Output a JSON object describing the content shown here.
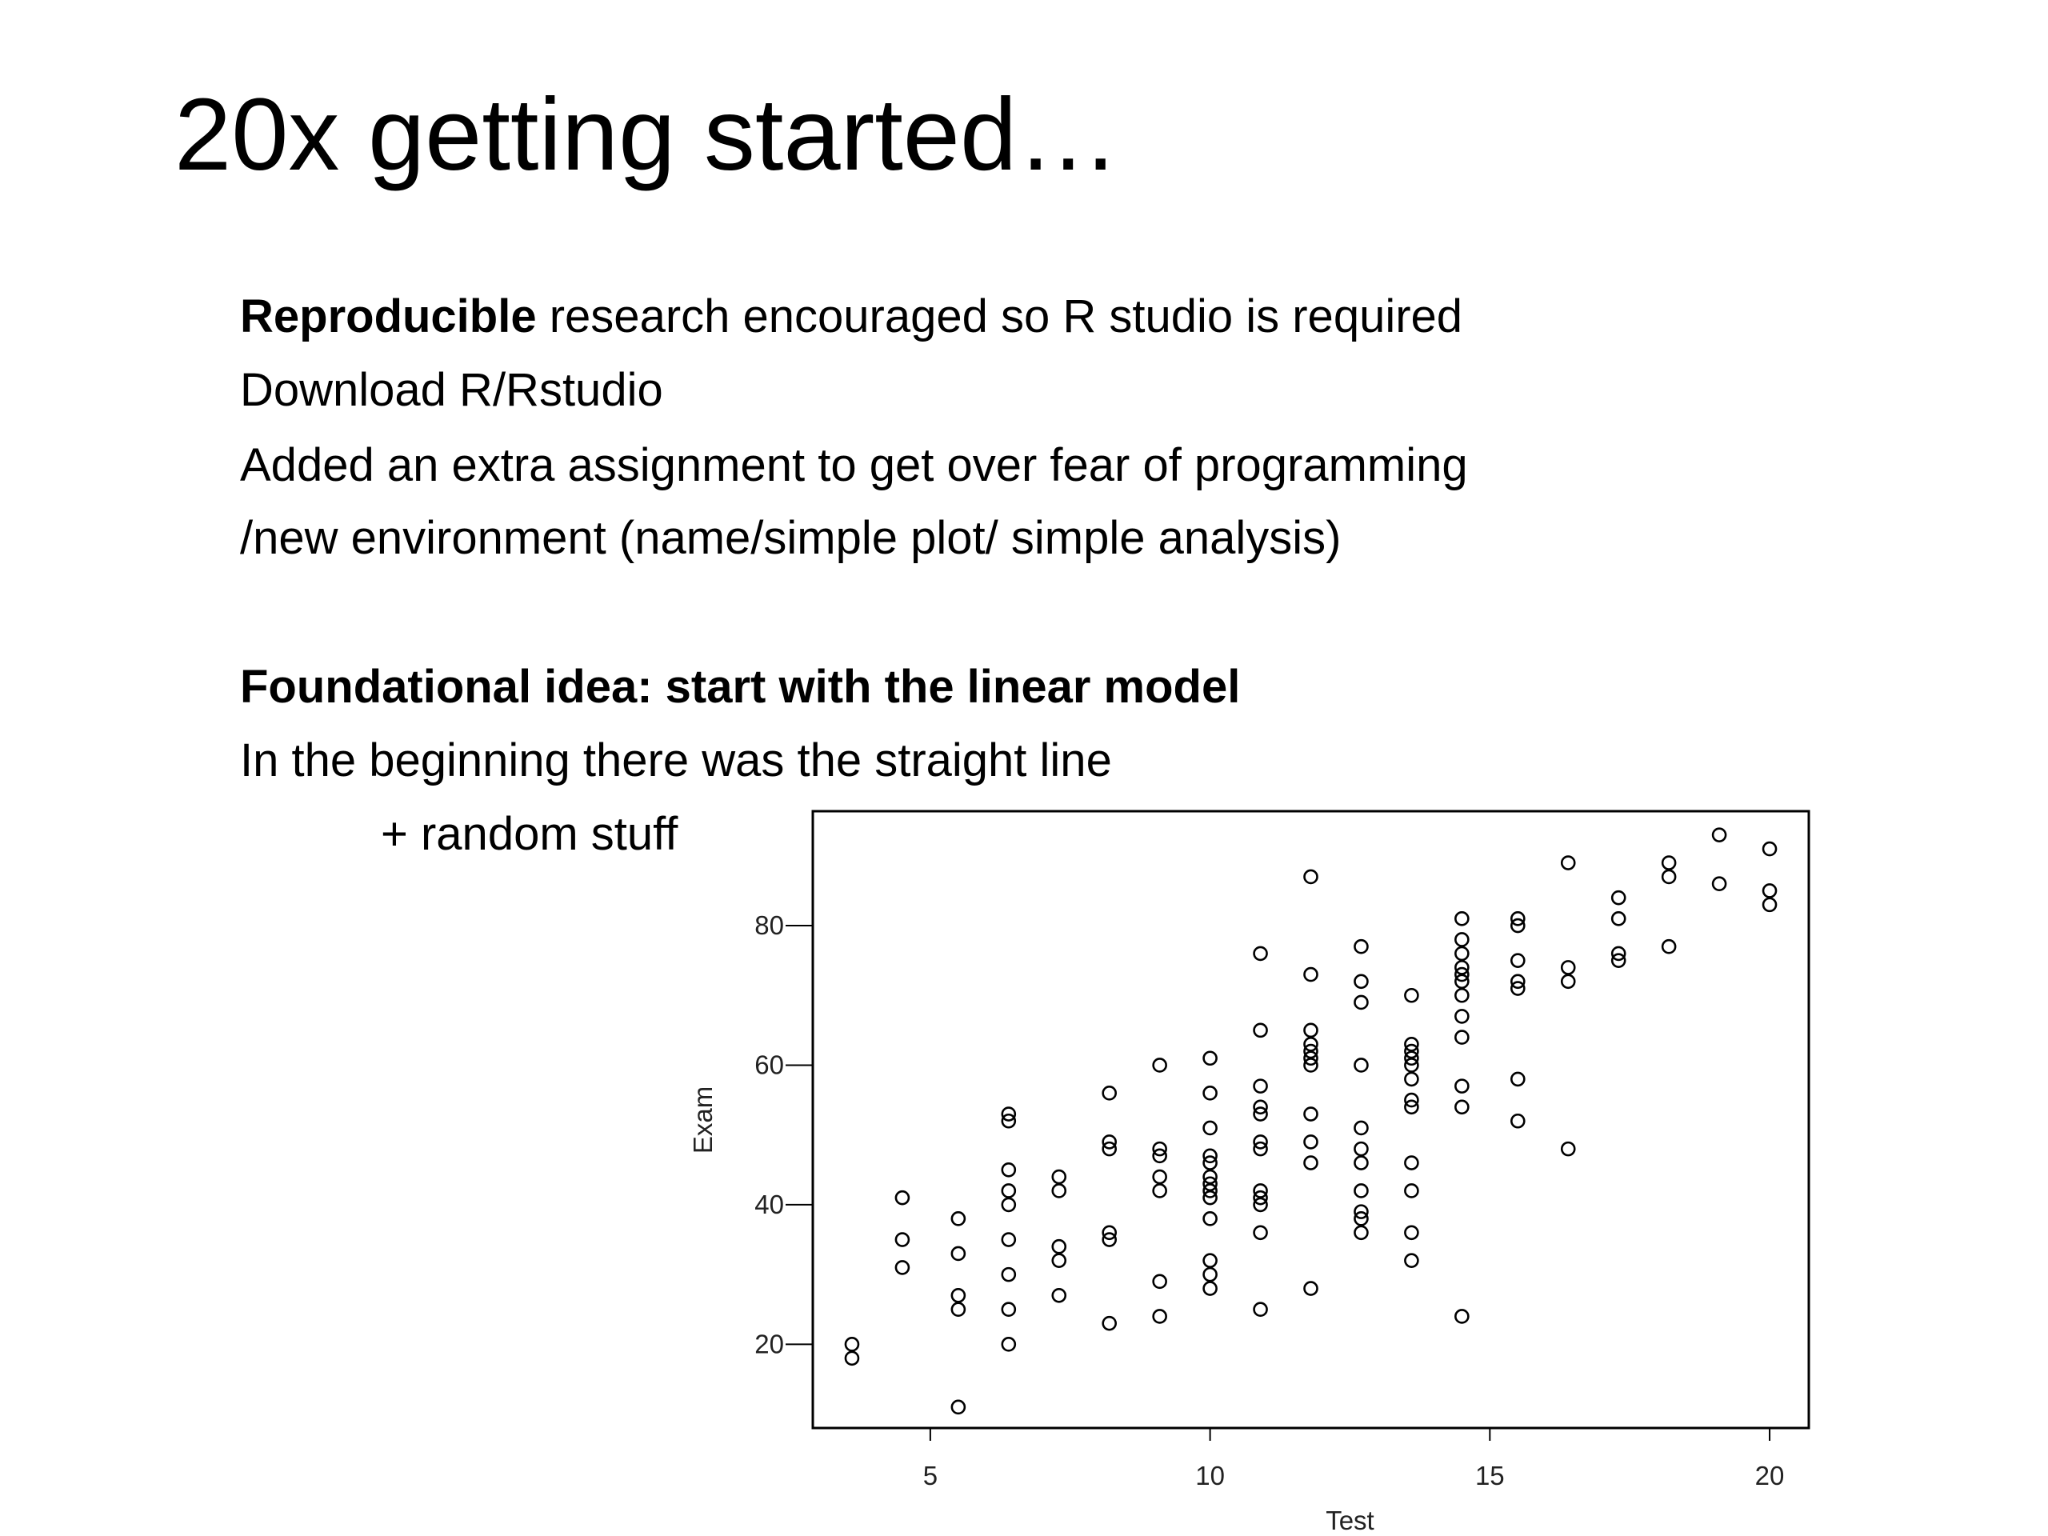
{
  "title": "20x getting started…",
  "lines": [
    {
      "bold": "Reproducible",
      "text": "research encouraged so R studio is required"
    },
    {
      "text": "Download R/Rstudio"
    },
    {
      "text": "Added an extra assignment to get over fear of programming"
    },
    {
      "text": "/new environment (name/simple plot/ simple analysis)"
    },
    {
      "bold": "Foundational idea: start with the linear model"
    },
    {
      "text": "In the beginning there was the straight line"
    },
    {
      "text": "+ random stuff"
    }
  ],
  "chart_data": {
    "type": "scatter",
    "x_label": "Test",
    "y_label": "Exam",
    "color": "#000000",
    "xlim": [
      2.9,
      20.7
    ],
    "ylim": [
      8,
      96.4
    ],
    "xticks": [
      5,
      10,
      15,
      20
    ],
    "yticks": [
      20,
      40,
      60,
      80
    ],
    "grid": false,
    "x": [
      3.6,
      3.6,
      4.5,
      4.5,
      4.5,
      5.5,
      5.5,
      5.5,
      5.5,
      5.5,
      6.4,
      6.4,
      6.4,
      6.4,
      6.4,
      6.4,
      6.4,
      6.4,
      6.4,
      7.3,
      7.3,
      7.3,
      7.3,
      7.3,
      8.2,
      8.2,
      8.2,
      8.2,
      8.2,
      8.2,
      9.1,
      9.1,
      9.1,
      9.1,
      9.1,
      9.1,
      9.1,
      10,
      10,
      10,
      10,
      10,
      10,
      10,
      10,
      10,
      10,
      10,
      10,
      10,
      10.9,
      10.9,
      10.9,
      10.9,
      10.9,
      10.9,
      10.9,
      10.9,
      10.9,
      10.9,
      10.9,
      10.9,
      11.8,
      11.8,
      11.8,
      11.8,
      11.8,
      11.8,
      11.8,
      11.8,
      11.8,
      11.8,
      11.8,
      12.7,
      12.7,
      12.7,
      12.7,
      12.7,
      12.7,
      12.7,
      12.7,
      12.7,
      12.7,
      12.7,
      13.6,
      13.6,
      13.6,
      13.6,
      13.6,
      13.6,
      13.6,
      13.6,
      13.6,
      13.6,
      13.6,
      13.6,
      14.5,
      14.5,
      14.5,
      14.5,
      14.5,
      14.5,
      14.5,
      14.5,
      14.5,
      14.5,
      14.5,
      14.5,
      15.5,
      15.5,
      15.5,
      15.5,
      15.5,
      15.5,
      15.5,
      16.4,
      16.4,
      16.4,
      16.4,
      17.3,
      17.3,
      17.3,
      17.3,
      18.2,
      18.2,
      18.2,
      19.1,
      19.1,
      20,
      20,
      20
    ],
    "y": [
      20,
      18,
      41,
      35,
      31,
      38,
      33,
      27,
      25,
      11,
      53,
      52,
      45,
      42,
      40,
      35,
      30,
      25,
      20,
      44,
      42,
      34,
      32,
      27,
      56,
      49,
      48,
      36,
      35,
      23,
      60,
      48,
      47,
      44,
      42,
      29,
      24,
      61,
      56,
      51,
      47,
      46,
      44,
      43,
      42,
      41,
      38,
      32,
      30,
      28,
      76,
      65,
      57,
      54,
      53,
      49,
      48,
      42,
      41,
      40,
      36,
      25,
      87,
      73,
      65,
      63,
      62,
      61,
      60,
      53,
      49,
      46,
      28,
      77,
      72,
      69,
      60,
      51,
      48,
      46,
      42,
      39,
      38,
      36,
      70,
      63,
      62,
      61,
      60,
      58,
      55,
      54,
      46,
      42,
      36,
      32,
      81,
      78,
      76,
      74,
      73,
      72,
      70,
      67,
      64,
      57,
      54,
      24,
      81,
      80,
      75,
      72,
      71,
      58,
      52,
      89,
      74,
      72,
      48,
      84,
      81,
      76,
      75,
      89,
      87,
      77,
      93,
      86,
      91,
      85,
      83
    ]
  }
}
